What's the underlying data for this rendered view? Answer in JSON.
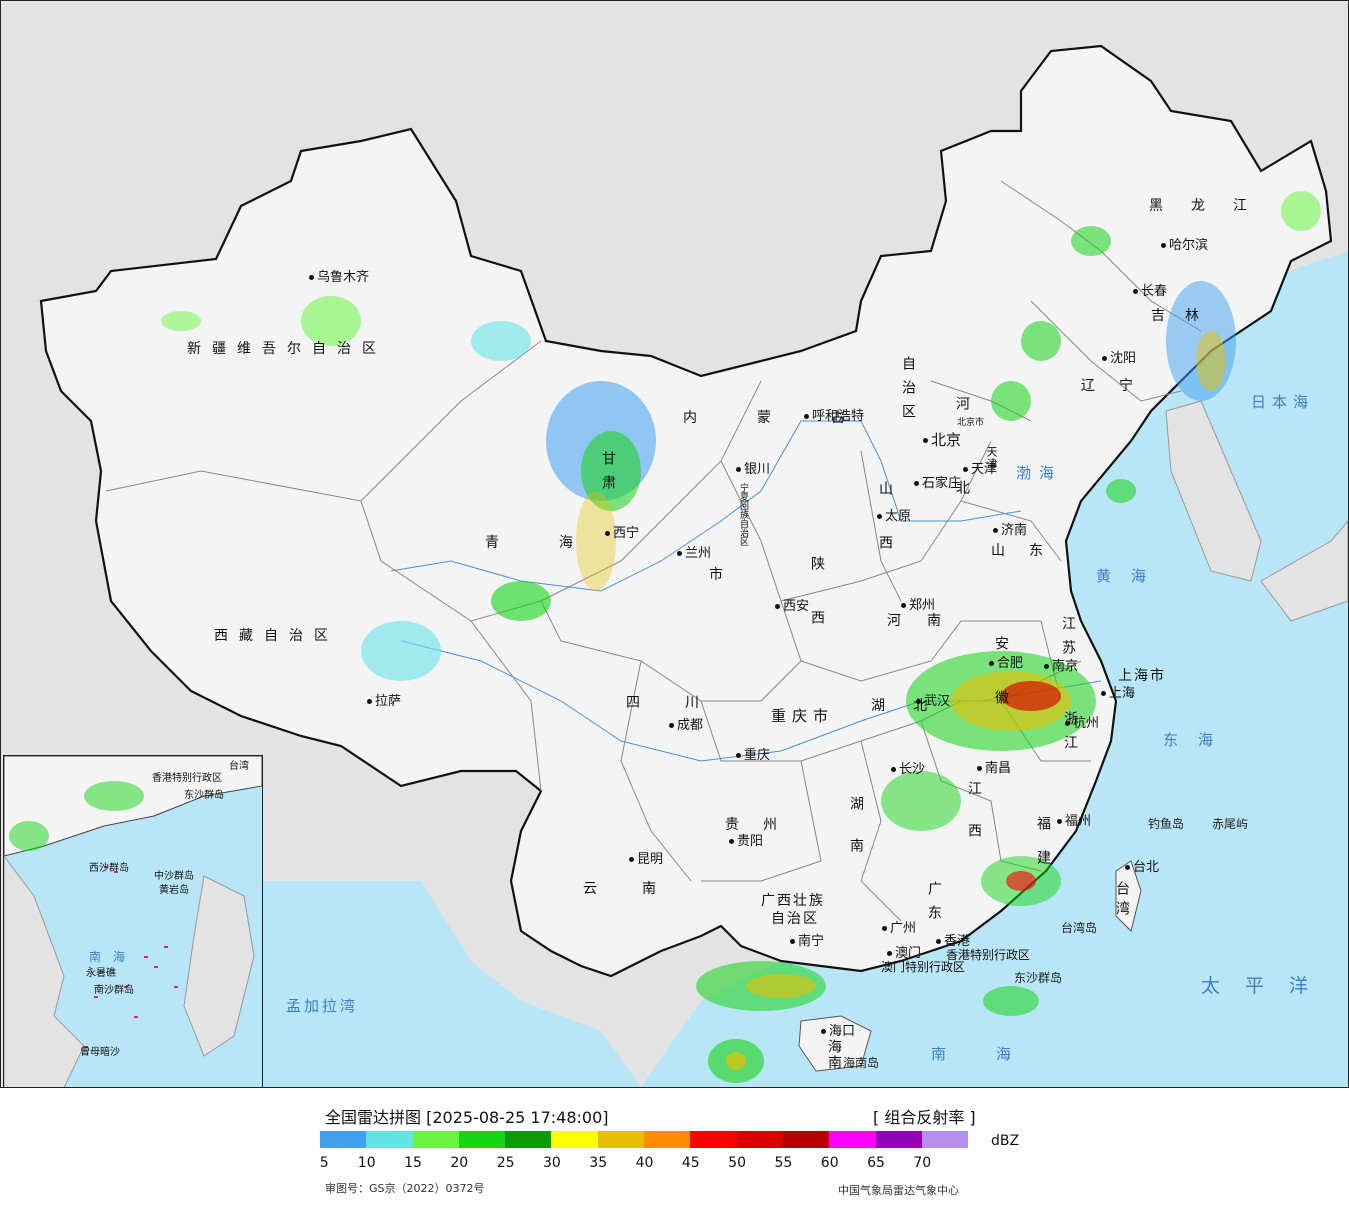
{
  "legend": {
    "title": "全国雷达拼图 [2025-08-25 17:48:00]",
    "product": "[ 组合反射率 ]",
    "unit": "dBZ",
    "ticks": [
      "5",
      "10",
      "15",
      "20",
      "25",
      "30",
      "35",
      "40",
      "45",
      "50",
      "55",
      "60",
      "65",
      "70"
    ],
    "colors": [
      "#3f9ff0",
      "#66e3e6",
      "#6af545",
      "#16d416",
      "#0a9a0a",
      "#ffff00",
      "#e6c000",
      "#ff8c00",
      "#ff0000",
      "#d80000",
      "#b80000",
      "#ff00ff",
      "#9400b4",
      "#b48ff0"
    ]
  },
  "footer": {
    "approval": "审图号：GS京（2022）0372号",
    "source": "中国气象局雷达气象中心"
  },
  "provinces": {
    "xinjiang": "新疆维吾尔自治区",
    "xizang": "西藏自治区",
    "qinghai": "青海",
    "gansu": "甘肃",
    "neimenggu_1": "内蒙古",
    "neimenggu_2": "自治区",
    "heilongjiang": "黑龙江",
    "jilin": "吉林",
    "liaoning": "辽宁",
    "hebei": "河北",
    "shanxi": "山西",
    "shandong": "山东",
    "henan": "河南",
    "shaanxi": "陕西",
    "sichuan": "四川",
    "chongqing": "重庆市",
    "hubei": "湖北",
    "hunan": "湖南",
    "jiangxi": "江西",
    "guizhou": "贵州",
    "yunnan": "云南",
    "guangxi_1": "广西壮族",
    "guangxi_2": "自治区",
    "guangdong": "广东",
    "fujian": "福建",
    "zhejiang": "浙江",
    "jiangsu": "江苏",
    "anhui": "安徽",
    "shanghai": "上海市",
    "taiwan": "台湾",
    "hainan": "海南",
    "ningxia": "宁夏回族自治区",
    "gansu_shi": "市",
    "tianjin": "天津",
    "beijing_shi": "北京市",
    "hk": "香港特别行政区",
    "macau": "澳门特别行政区"
  },
  "cities": {
    "urumqi": "乌鲁木齐",
    "lhasa": "拉萨",
    "xining": "西宁",
    "lanzhou": "兰州",
    "yinchuan": "银川",
    "hohhot": "呼和浩特",
    "beijing": "北京",
    "tianjin": "天津",
    "shijiazhuang": "石家庄",
    "taiyuan": "太原",
    "jinan": "济南",
    "zhengzhou": "郑州",
    "xian": "西安",
    "chengdu": "成都",
    "chongqing": "重庆",
    "wuhan": "武汉",
    "hefei": "合肥",
    "nanjing": "南京",
    "shanghai": "上海",
    "hangzhou": "杭州",
    "nanchang": "南昌",
    "changsha": "长沙",
    "guiyang": "贵阳",
    "kunming": "昆明",
    "nanning": "南宁",
    "guangzhou": "广州",
    "hongkong": "香港",
    "macau": "澳门",
    "fuzhou": "福州",
    "taibei": "台北",
    "haikou": "海口",
    "shenyang": "沈阳",
    "changchun": "长春",
    "harbin": "哈尔滨"
  },
  "seas": {
    "bohai": "渤海",
    "huanghai": "黄海",
    "donghai": "东海",
    "nanhai": "南海",
    "taipingyang": "太平洋",
    "ribenhai": "日本海",
    "mengjialawan": "孟加拉湾"
  },
  "islands": {
    "diaoyu": "钓鱼岛",
    "chiwei": "赤尾屿",
    "dongsha": "东沙群岛",
    "hainan_dao": "海南岛",
    "taiwan_dao": "台湾岛"
  },
  "inset": {
    "nanhai": "南海",
    "xisha": "西沙群岛",
    "zhongsha": "中沙群岛",
    "nansha": "南沙群岛",
    "huangyan": "黄岩岛",
    "zengmu": "曾母暗沙",
    "yongshu": "永暑礁",
    "taiwan": "台湾",
    "hk": "香港特别行政区",
    "dongsha": "东沙群岛"
  }
}
